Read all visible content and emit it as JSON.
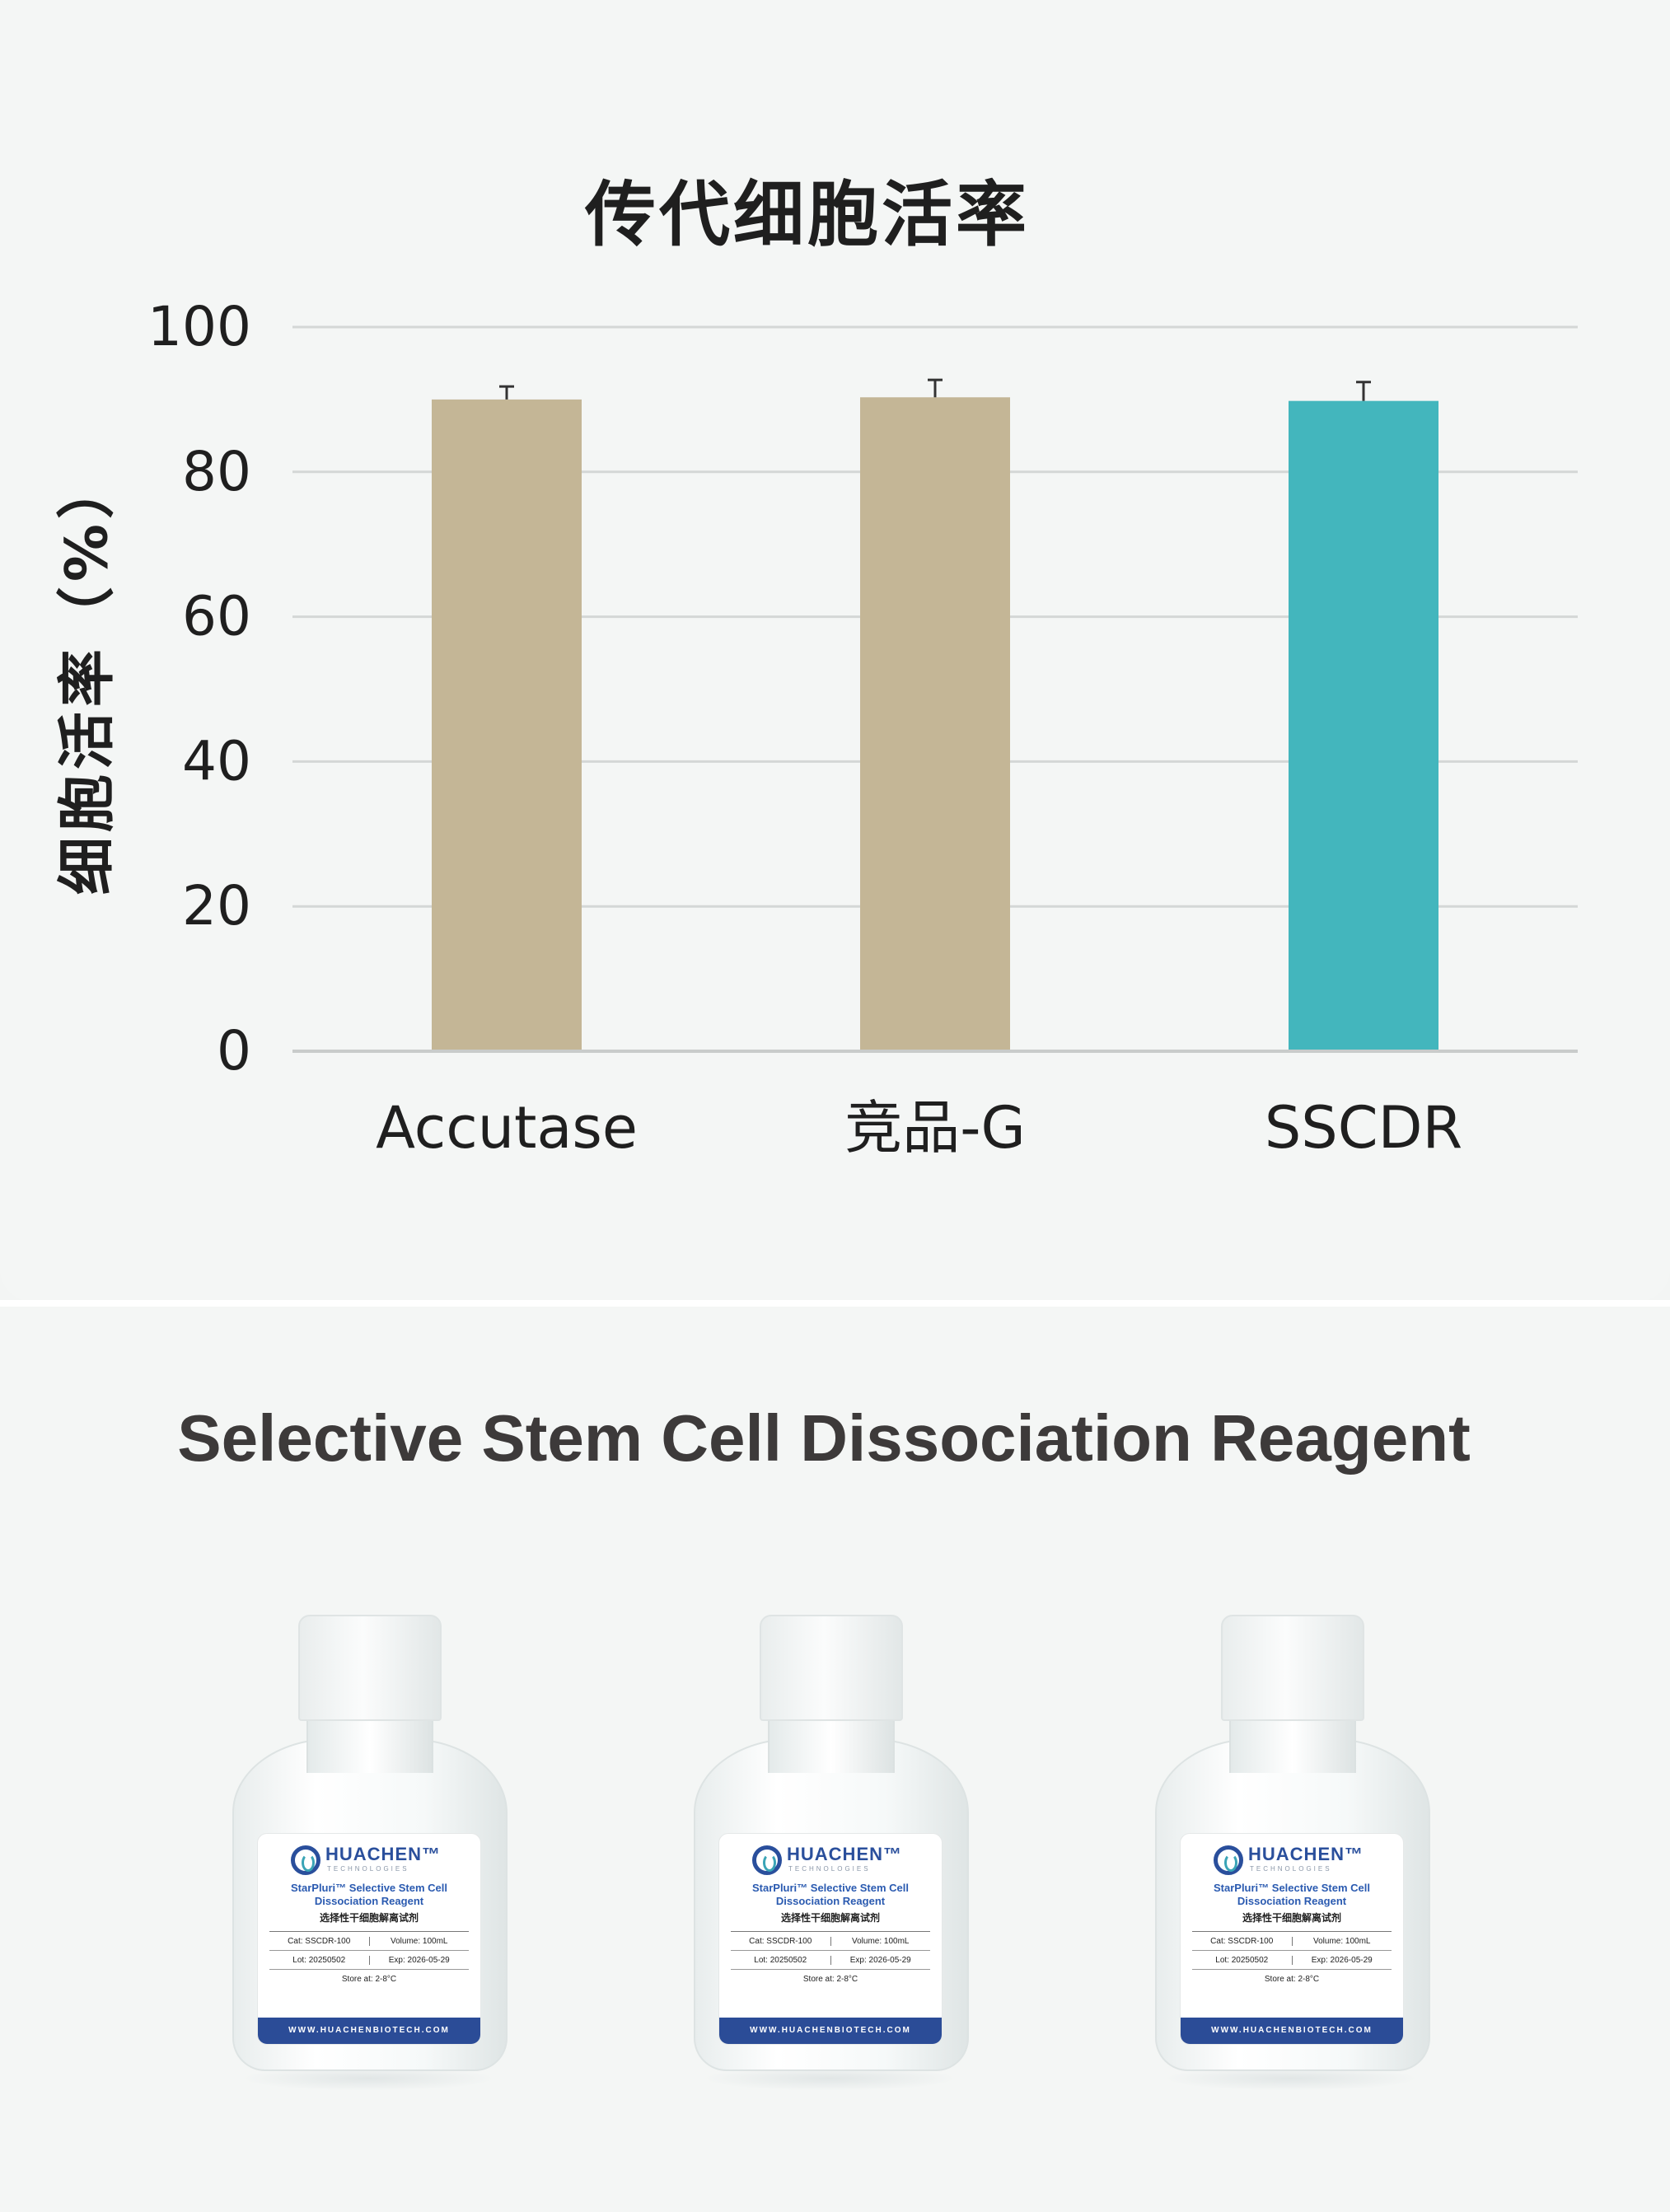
{
  "chart_data": {
    "type": "bar",
    "title": "传代细胞活率",
    "ylabel": "细胞活率（%）",
    "xlabel": "",
    "categories": [
      "Accutase",
      "竞品-G",
      "SSCDR"
    ],
    "values": [
      90,
      90.3,
      89.8
    ],
    "errors": [
      1.8,
      2.4,
      2.6
    ],
    "bar_colors": [
      "#c4b696",
      "#c4b696",
      "#43b6bd"
    ],
    "ylim": [
      0,
      100
    ],
    "yticks": [
      0,
      20,
      40,
      60,
      80,
      100
    ],
    "grid": true,
    "legend": "none"
  },
  "product": {
    "title": "Selective Stem Cell Dissociation Reagent",
    "bottle_label": {
      "brand": "HUACHEN™",
      "brand_sub": "TECHNOLOGIES",
      "name_en_1": "StarPluri™ Selective Stem Cell",
      "name_en_2": "Dissociation Reagent",
      "name_cn": "选择性干细胞解离试剂",
      "cat": "Cat: SSCDR-100",
      "volume": "Volume: 100mL",
      "lot": "Lot: 20250502",
      "exp": "Exp: 2026-05-29",
      "store": "Store at: 2-8°C",
      "website": "WWW.HUACHENBIOTECH.COM"
    }
  }
}
